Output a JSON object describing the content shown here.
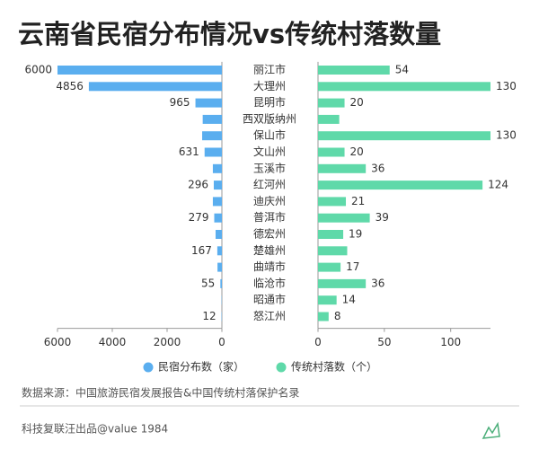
{
  "chart_data": {
    "type": "butterfly",
    "title": "云南省民宿分布情况vs传统村落数量",
    "categories": [
      "丽江市",
      "大理州",
      "昆明市",
      "西双版纳州",
      "保山市",
      "文山州",
      "玉溪市",
      "红河州",
      "迪庆州",
      "普洱市",
      "德宏州",
      "楚雄州",
      "曲靖市",
      "临沧市",
      "昭通市",
      "怒江州"
    ],
    "series": [
      {
        "name": "民宿分布数（家）",
        "color": "#5aaeef",
        "side": "left",
        "values": [
          6000,
          4856,
          965,
          700,
          720,
          631,
          330,
          296,
          330,
          279,
          230,
          167,
          160,
          55,
          10,
          12
        ],
        "value_labels": [
          "6000",
          "4856",
          "965",
          null,
          null,
          "631",
          null,
          "296",
          null,
          "279",
          null,
          "167",
          null,
          "55",
          null,
          "12"
        ],
        "xlim": [
          0,
          6000
        ],
        "xticks": [
          0,
          2000,
          4000,
          6000
        ]
      },
      {
        "name": "传统村落数（个）",
        "color": "#5fd9a9",
        "side": "right",
        "values": [
          54,
          130,
          20,
          16,
          130,
          20,
          36,
          124,
          21,
          39,
          19,
          22,
          17,
          36,
          14,
          8
        ],
        "value_labels": [
          "54",
          "130",
          "20",
          null,
          "130",
          "20",
          "36",
          "124",
          "21",
          "39",
          "19",
          null,
          "17",
          "36",
          "14",
          "8"
        ],
        "xlim": [
          0,
          130
        ],
        "xticks": [
          0,
          50,
          100
        ]
      }
    ]
  },
  "notes": {
    "source": "数据来源：中国旅游民宿发展报告&中国传统村落保护名录",
    "credit": "科技复联汪出品@value 1984"
  }
}
